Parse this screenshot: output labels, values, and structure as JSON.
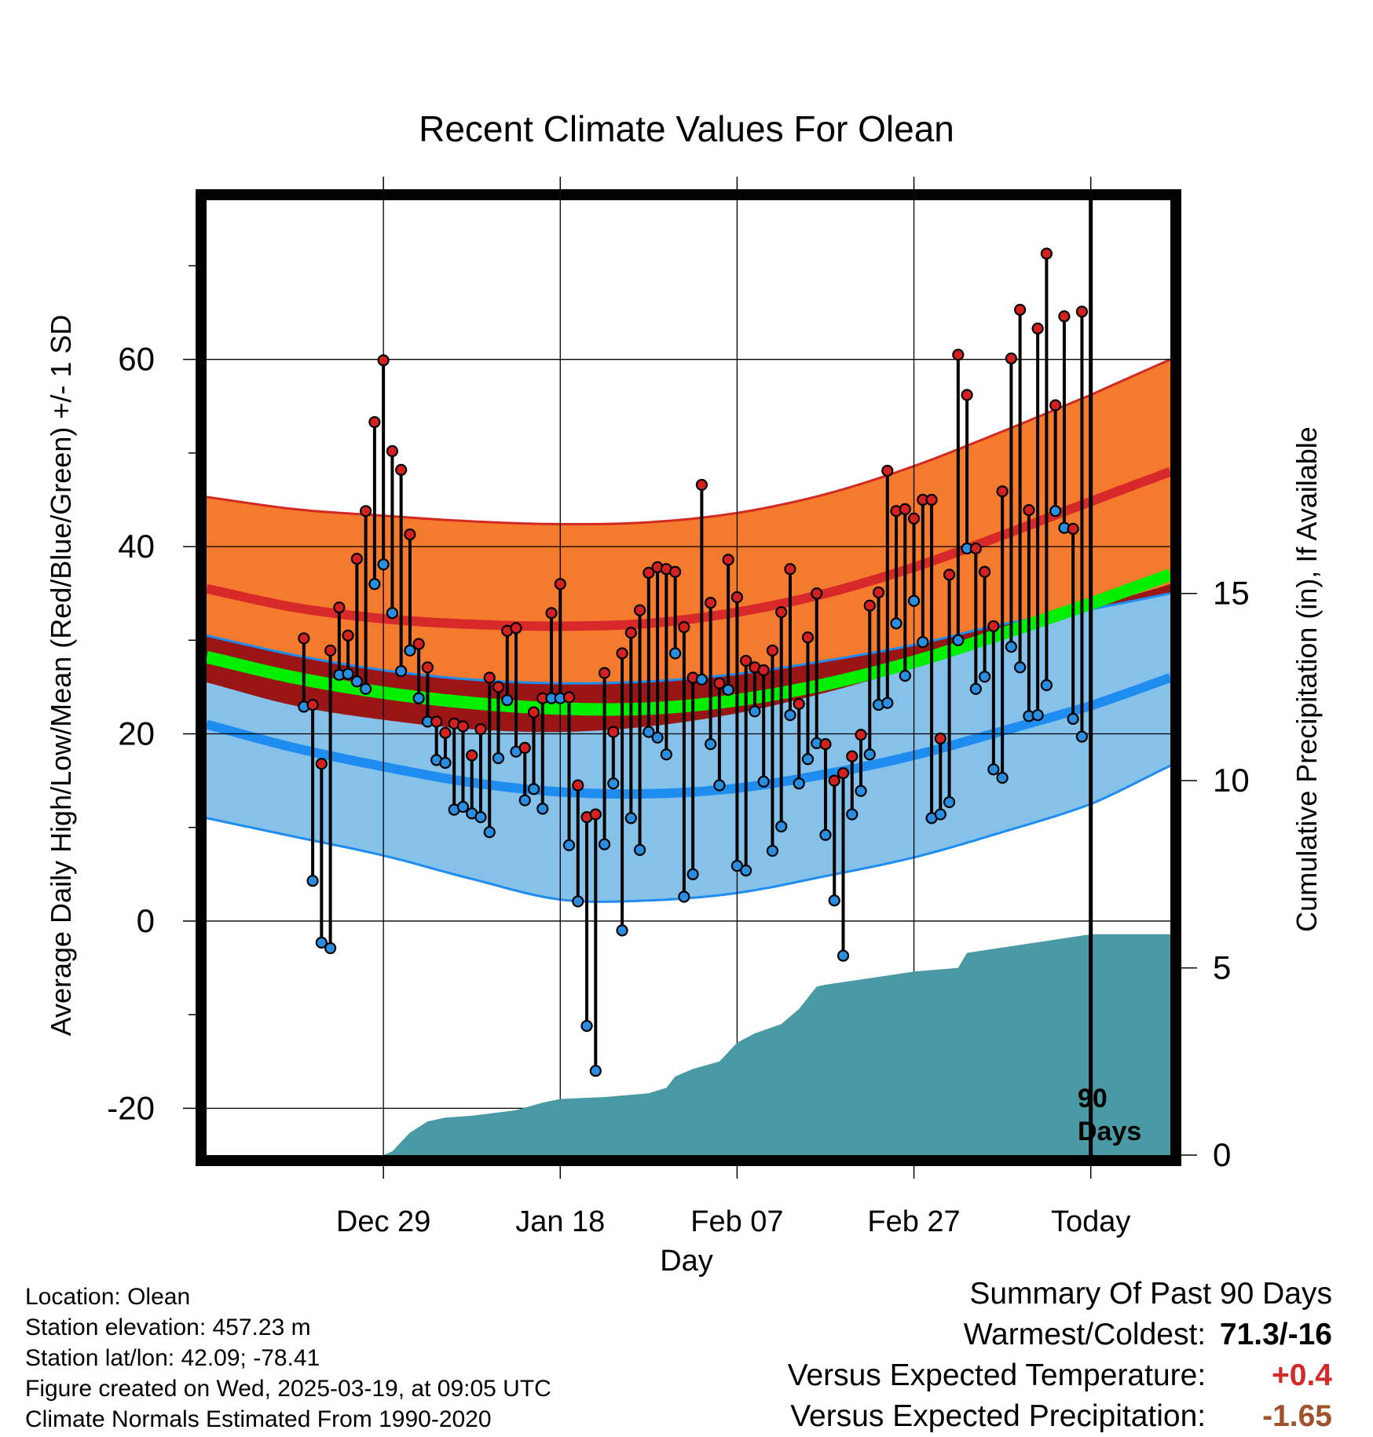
{
  "chart_data": {
    "type": "line",
    "title": "Recent Climate Values For Olean",
    "xlabel": "Day",
    "ylabel": "Average Daily High/Low/Mean (Red/Blue/Green) +/- 1 SD",
    "y2label": "Cumulative Precipitation (in), If Available",
    "x_range_days": [
      -100,
      9
    ],
    "ylim": [
      -25,
      77
    ],
    "y2lim": [
      0,
      25.5
    ],
    "y_ticks": [
      -20,
      0,
      20,
      40,
      60
    ],
    "y2_ticks": [
      0,
      5,
      10,
      15
    ],
    "x_ticks": [
      {
        "day": -80,
        "label": "Dec 29"
      },
      {
        "day": -60,
        "label": "Jan 18"
      },
      {
        "day": -40,
        "label": "Feb 07"
      },
      {
        "day": -20,
        "label": "Feb 27"
      },
      {
        "day": 0,
        "label": "Today"
      }
    ],
    "window_label": "90 Days",
    "grid": true,
    "colors": {
      "high_band": "#f47a2e",
      "high_mean": "#d7282a",
      "low_band": "#85c1e8",
      "low_mean": "#1f8cf0",
      "mean_normal": "#00ee00",
      "overlap": "#9a1515",
      "precip": "#4a9aa5",
      "high_dot": "#d32020",
      "low_dot": "#2a8ee0"
    },
    "normals": {
      "day": [
        -100,
        -90,
        -80,
        -70,
        -60,
        -50,
        -40,
        -30,
        -20,
        -10,
        0,
        9
      ],
      "high_mean": [
        35.5,
        33.5,
        32.3,
        31.7,
        31.5,
        31.8,
        33.0,
        35.0,
        37.8,
        41.2,
        44.8,
        48.0
      ],
      "high_upper": [
        45.3,
        44.0,
        43.3,
        42.7,
        42.4,
        42.6,
        43.6,
        45.6,
        48.6,
        52.3,
        56.2,
        60.0
      ],
      "high_lower": [
        25.5,
        23.0,
        21.5,
        20.5,
        20.2,
        20.8,
        22.2,
        24.4,
        27.1,
        30.1,
        33.4,
        36.0
      ],
      "low_mean": [
        21.0,
        18.5,
        16.5,
        14.8,
        13.8,
        13.6,
        14.2,
        15.7,
        17.7,
        20.3,
        23.0,
        26.0
      ],
      "low_upper": [
        30.5,
        28.4,
        26.8,
        25.8,
        25.4,
        25.6,
        26.4,
        27.8,
        29.5,
        31.7,
        33.3,
        35.0
      ],
      "low_lower": [
        11.0,
        9.0,
        7.0,
        4.5,
        2.3,
        2.2,
        3.0,
        4.8,
        6.8,
        9.5,
        12.5,
        16.6
      ],
      "mean": [
        28.2,
        26.0,
        24.4,
        23.3,
        22.7,
        22.7,
        23.6,
        25.3,
        27.7,
        30.7,
        33.9,
        37.0
      ]
    },
    "daily": {
      "day": [
        -89,
        -88,
        -87,
        -86,
        -85,
        -84,
        -83,
        -82,
        -81,
        -80,
        -79,
        -78,
        -77,
        -76,
        -75,
        -74,
        -73,
        -72,
        -71,
        -70,
        -69,
        -68,
        -67,
        -66,
        -65,
        -64,
        -63,
        -62,
        -61,
        -60,
        -59,
        -58,
        -57,
        -56,
        -55,
        -54,
        -53,
        -52,
        -51,
        -50,
        -49,
        -48,
        -47,
        -46,
        -45,
        -44,
        -43,
        -42,
        -41,
        -40,
        -39,
        -38,
        -37,
        -36,
        -35,
        -34,
        -33,
        -32,
        -31,
        -30,
        -29,
        -28,
        -27,
        -26,
        -25,
        -24,
        -23,
        -22,
        -21,
        -20,
        -19,
        -18,
        -17,
        -16,
        -15,
        -14,
        -13,
        -12,
        -11,
        -10,
        -9,
        -8,
        -7,
        -6,
        -5,
        -4,
        -3,
        -2,
        -1
      ],
      "high": [
        30.2,
        23.1,
        16.8,
        28.9,
        33.5,
        30.5,
        38.7,
        43.8,
        53.3,
        59.9,
        50.2,
        48.2,
        41.3,
        29.6,
        27.1,
        21.3,
        20.1,
        21.1,
        20.8,
        17.7,
        20.5,
        26.0,
        25.0,
        31.0,
        31.3,
        18.5,
        22.3,
        23.8,
        32.9,
        36.0,
        23.9,
        14.5,
        11.1,
        11.4,
        26.5,
        20.2,
        28.6,
        30.8,
        33.2,
        37.2,
        37.8,
        37.6,
        37.3,
        31.4,
        26.0,
        46.6,
        34.0,
        25.4,
        38.6,
        34.6,
        27.8,
        27.1,
        26.8,
        28.9,
        33.0,
        37.6,
        23.2,
        30.3,
        35.0,
        18.9,
        15.0,
        15.8,
        17.6,
        19.9,
        33.7,
        35.1,
        48.1,
        43.8,
        44.0,
        43.0,
        45.0,
        45.0,
        19.5,
        37.0,
        60.5,
        56.2,
        39.8,
        37.3,
        31.5,
        45.9,
        60.1,
        65.3,
        43.9,
        63.3,
        71.3,
        55.1,
        64.6,
        41.9,
        65.1
      ],
      "low": [
        22.9,
        4.3,
        -2.3,
        -2.9,
        26.3,
        26.4,
        25.6,
        24.8,
        36.0,
        38.1,
        32.9,
        26.7,
        28.9,
        23.8,
        21.3,
        17.2,
        16.9,
        11.9,
        12.2,
        11.5,
        11.1,
        9.5,
        17.4,
        23.6,
        18.1,
        12.9,
        14.1,
        12.0,
        23.8,
        23.8,
        8.1,
        2.1,
        -11.2,
        -16.0,
        8.2,
        14.7,
        -1.0,
        11.0,
        7.6,
        20.2,
        19.6,
        17.8,
        28.6,
        2.6,
        5.0,
        25.8,
        18.9,
        14.5,
        24.7,
        5.9,
        5.4,
        22.4,
        14.9,
        7.5,
        10.1,
        22.0,
        14.7,
        17.3,
        19.0,
        9.2,
        2.2,
        -3.7,
        11.4,
        13.9,
        17.8,
        23.1,
        23.3,
        31.8,
        26.2,
        34.2,
        29.8,
        11.0,
        11.4,
        12.7,
        30.0,
        39.8,
        24.8,
        26.1,
        16.2,
        15.3,
        29.3,
        27.1,
        21.9,
        22.0,
        25.2,
        43.8,
        42.0,
        21.6,
        19.7
      ]
    },
    "precip_cumulative": {
      "day": [
        -90,
        -80,
        -79,
        -77,
        -75,
        -73,
        -70,
        -65,
        -62,
        -60,
        -55,
        -50,
        -48,
        -47,
        -45,
        -42,
        -40,
        -38,
        -35,
        -33,
        -31,
        -30,
        -20,
        -15,
        -14,
        0,
        9
      ],
      "value": [
        0.0,
        0.0,
        0.1,
        0.6,
        0.9,
        1.0,
        1.05,
        1.2,
        1.4,
        1.5,
        1.55,
        1.65,
        1.8,
        2.1,
        2.3,
        2.5,
        3.0,
        3.25,
        3.5,
        3.9,
        4.5,
        4.55,
        4.9,
        5.0,
        5.4,
        5.9,
        5.9
      ]
    }
  },
  "info": {
    "lines": [
      "Location: Olean",
      "Station elevation: 457.23 m",
      "Station lat/lon: 42.09; -78.41",
      "Figure created on Wed, 2025-03-19, at 09:05 UTC",
      "Climate Normals Estimated From 1990-2020"
    ]
  },
  "summary": {
    "heading": "Summary Of Past 90 Days",
    "warm_cold_label": "Warmest/Coldest:",
    "warm_cold_value": "71.3/-16",
    "temp_label": "Versus Expected Temperature:",
    "temp_value": "+0.4",
    "temp_color": "#d42a2a",
    "precip_label": "Versus Expected Precipitation:",
    "precip_value": "-1.65",
    "precip_color": "#a0522d"
  }
}
